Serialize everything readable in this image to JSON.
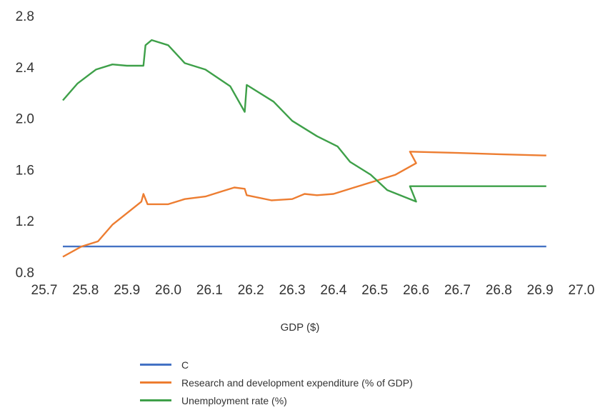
{
  "chart_data": {
    "type": "line",
    "title": "",
    "xlabel": "GDP ($)",
    "ylabel": "",
    "xlim": [
      25.7,
      27.0
    ],
    "ylim": [
      0.8,
      2.8
    ],
    "x_ticks": [
      "25.7",
      "25.8",
      "25.9",
      "26.0",
      "26.1",
      "26.2",
      "26.3",
      "26.4",
      "26.5",
      "26.6",
      "26.7",
      "26.8",
      "26.9",
      "27.0"
    ],
    "y_ticks": [
      "0.8",
      "1.2",
      "1.6",
      "2.0",
      "2.4",
      "2.8"
    ],
    "grid": false,
    "legend_position": "bottom",
    "series": [
      {
        "name": "C",
        "color": "#4472c4",
        "points": [
          [
            25.745,
            1.0
          ],
          [
            26.915,
            1.0
          ]
        ]
      },
      {
        "name": "Research and development expenditure (% of GDP)",
        "color": "#ed7d31",
        "points": [
          [
            25.745,
            0.92
          ],
          [
            25.79,
            1.0
          ],
          [
            25.83,
            1.04
          ],
          [
            25.865,
            1.17
          ],
          [
            25.9,
            1.26
          ],
          [
            25.935,
            1.35
          ],
          [
            25.94,
            1.41
          ],
          [
            25.95,
            1.33
          ],
          [
            26.0,
            1.33
          ],
          [
            26.04,
            1.37
          ],
          [
            26.09,
            1.39
          ],
          [
            26.13,
            1.43
          ],
          [
            26.16,
            1.46
          ],
          [
            26.185,
            1.45
          ],
          [
            26.19,
            1.4
          ],
          [
            26.25,
            1.36
          ],
          [
            26.3,
            1.37
          ],
          [
            26.33,
            1.41
          ],
          [
            26.36,
            1.4
          ],
          [
            26.4,
            1.41
          ],
          [
            26.45,
            1.46
          ],
          [
            26.5,
            1.51
          ],
          [
            26.55,
            1.56
          ],
          [
            26.6,
            1.65
          ],
          [
            26.585,
            1.74
          ],
          [
            26.7,
            1.73
          ],
          [
            26.8,
            1.72
          ],
          [
            26.915,
            1.71
          ]
        ]
      },
      {
        "name": "Unemployment rate (%)",
        "color": "#3ea049",
        "points": [
          [
            25.745,
            2.14
          ],
          [
            25.78,
            2.27
          ],
          [
            25.825,
            2.38
          ],
          [
            25.865,
            2.42
          ],
          [
            25.9,
            2.41
          ],
          [
            25.94,
            2.41
          ],
          [
            25.945,
            2.57
          ],
          [
            25.96,
            2.61
          ],
          [
            26.0,
            2.57
          ],
          [
            26.04,
            2.43
          ],
          [
            26.09,
            2.38
          ],
          [
            26.15,
            2.25
          ],
          [
            26.185,
            2.05
          ],
          [
            26.19,
            2.26
          ],
          [
            26.255,
            2.13
          ],
          [
            26.3,
            1.98
          ],
          [
            26.36,
            1.86
          ],
          [
            26.41,
            1.78
          ],
          [
            26.44,
            1.66
          ],
          [
            26.49,
            1.56
          ],
          [
            26.53,
            1.44
          ],
          [
            26.6,
            1.35
          ],
          [
            26.585,
            1.47
          ],
          [
            26.7,
            1.47
          ],
          [
            26.8,
            1.47
          ],
          [
            26.915,
            1.47
          ]
        ]
      }
    ]
  }
}
